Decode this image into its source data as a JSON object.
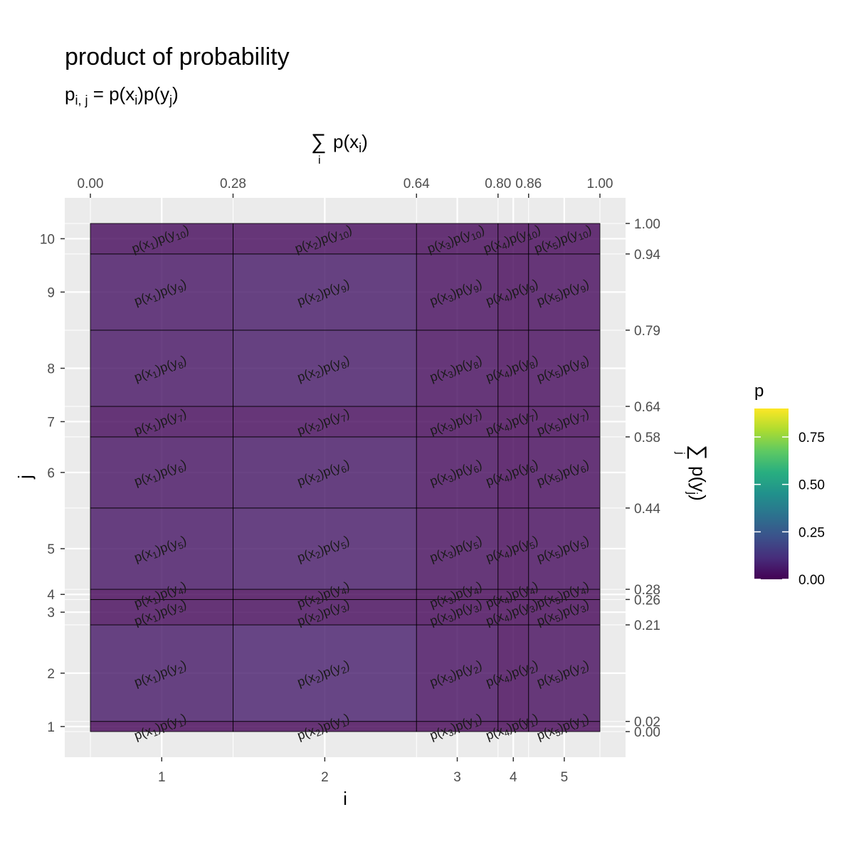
{
  "chart_data": {
    "type": "heatmap",
    "title": "product of probability",
    "subtitle": {
      "p": "p",
      "p_sub": "i, j",
      "rest": " = p(x",
      "x_sub": "i",
      "mid": ")p(y",
      "y_sub": "j",
      "end": ")"
    },
    "top_axis_title": {
      "sum": "∑",
      "sum_sub": "i",
      "text": "p(x",
      "sub": "i",
      "end": ")"
    },
    "right_axis_title": {
      "sum": "∑",
      "sum_sub": "j",
      "text": "p(y",
      "sub": "j",
      "end": ")"
    },
    "xlabel": "i",
    "ylabel": "j",
    "x_ticks": [
      1,
      2,
      3,
      4,
      5
    ],
    "y_ticks": [
      1,
      2,
      3,
      4,
      5,
      6,
      7,
      8,
      9,
      10
    ],
    "top_ticks": [
      "0.00",
      "0.28",
      "0.64",
      "0.80",
      "0.86",
      "1.00"
    ],
    "right_ticks": [
      "0.00",
      "0.02",
      "0.21",
      "0.26",
      "0.28",
      "0.44",
      "0.58",
      "0.64",
      "0.79",
      "0.94",
      "1.00"
    ],
    "x_cum": [
      0.0,
      0.28,
      0.64,
      0.8,
      0.86,
      1.0
    ],
    "y_cum": [
      0.0,
      0.02,
      0.21,
      0.26,
      0.28,
      0.44,
      0.58,
      0.64,
      0.79,
      0.94,
      1.0
    ],
    "x_probs": [
      0.28,
      0.36,
      0.16,
      0.06,
      0.14
    ],
    "y_probs": [
      0.02,
      0.19,
      0.05,
      0.02,
      0.16,
      0.14,
      0.06,
      0.15,
      0.15,
      0.06
    ],
    "legend": {
      "title": "p",
      "ticks": [
        "0.00",
        "0.25",
        "0.50",
        "0.75"
      ],
      "tick_values": [
        0,
        0.25,
        0.5,
        0.75
      ],
      "range": [
        0,
        0.9
      ],
      "palette": "viridis"
    },
    "cell_label_template": {
      "p": "p(x",
      "mid": ")p(y",
      "end": ")"
    }
  }
}
